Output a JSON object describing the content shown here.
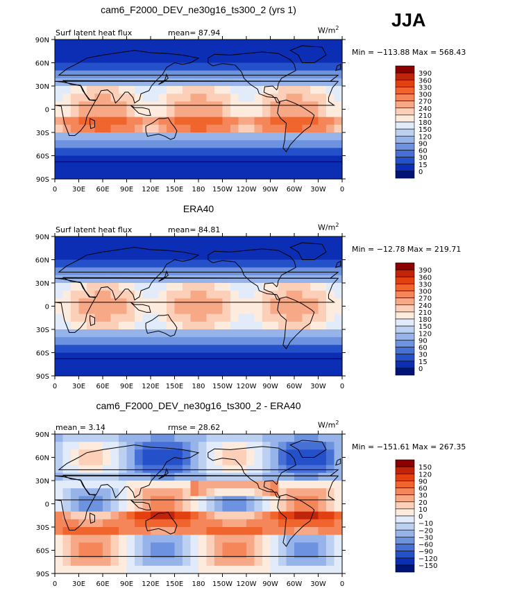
{
  "season": "JJA",
  "units_text": "W/m",
  "units_exp": "2",
  "panels": [
    {
      "title": "cam6_F2000_DEV_ne30g16_ts300_2 (yrs 1)",
      "left_label": "Surf latent heat flux",
      "center_label": "mean=  87.94",
      "minmax": "Min = −113.88 Max = 568.43",
      "colorbar_labels": [
        "390",
        "360",
        "330",
        "300",
        "270",
        "240",
        "210",
        "180",
        "150",
        "120",
        "90",
        "60",
        "30",
        "15",
        "0"
      ],
      "colors": [
        "#8b0000",
        "#c0250b",
        "#e2410f",
        "#f0642d",
        "#f5865a",
        "#f7a886",
        "#fbcfb8",
        "#fdebde",
        "#e2ebfa",
        "#bcd0f2",
        "#96b3ea",
        "#6d92df",
        "#4770d6",
        "#2450c9",
        "#0b2eb5",
        "#001478"
      ]
    },
    {
      "title": "ERA40",
      "left_label": "Surf latent heat flux",
      "center_label": "mean=  84.81",
      "minmax": "Min = −12.78 Max = 219.71",
      "colorbar_labels": [
        "390",
        "360",
        "330",
        "300",
        "270",
        "240",
        "210",
        "180",
        "150",
        "120",
        "90",
        "60",
        "30",
        "15",
        "0"
      ],
      "colors": [
        "#8b0000",
        "#c0250b",
        "#e2410f",
        "#f0642d",
        "#f5865a",
        "#f7a886",
        "#fbcfb8",
        "#fdebde",
        "#e2ebfa",
        "#bcd0f2",
        "#96b3ea",
        "#6d92df",
        "#4770d6",
        "#2450c9",
        "#0b2eb5",
        "#001478"
      ]
    },
    {
      "title": "cam6_F2000_DEV_ne30g16_ts300_2 - ERA40",
      "left_label": "mean =     3.14",
      "center_label": "rmse =   28.62",
      "minmax": "Min = −151.61 Max = 267.35",
      "colorbar_labels": [
        "150",
        "120",
        "90",
        "60",
        "30",
        "20",
        "10",
        "0",
        "−10",
        "−20",
        "−30",
        "−60",
        "−90",
        "−120",
        "−150"
      ],
      "colors": [
        "#8b0000",
        "#c0250b",
        "#e2410f",
        "#f0642d",
        "#f5865a",
        "#f7a886",
        "#fbcfb8",
        "#fdebde",
        "#e2ebfa",
        "#bcd0f2",
        "#96b3ea",
        "#6d92df",
        "#4770d6",
        "#2450c9",
        "#0b2eb5",
        "#001478"
      ]
    }
  ],
  "lat_ticks": [
    "90N",
    "60N",
    "30N",
    "0",
    "30S",
    "60S",
    "90S"
  ],
  "lon_ticks": [
    "0",
    "30E",
    "60E",
    "90E",
    "120E",
    "150E",
    "180",
    "150W",
    "120W",
    "90W",
    "60W",
    "30W",
    "0"
  ]
}
